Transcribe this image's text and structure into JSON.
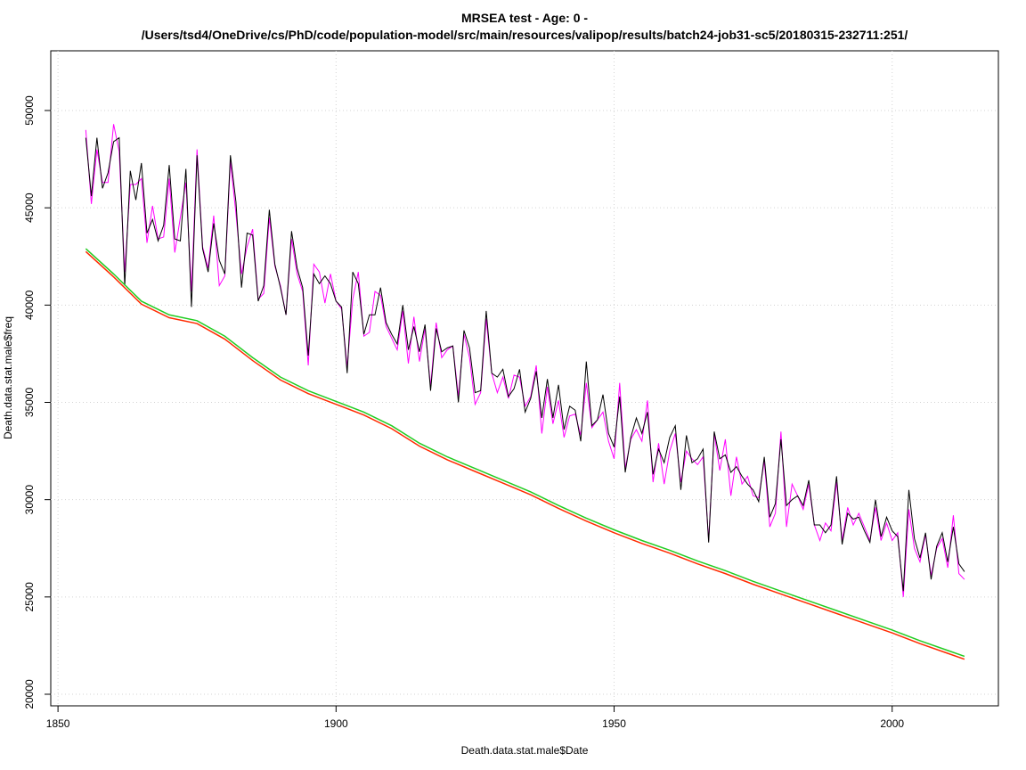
{
  "chart_data": {
    "type": "line",
    "title": "MRSEA test  - Age: 0 -",
    "subtitle": "/Users/tsd4/OneDrive/cs/PhD/code/population-model/src/main/resources/valipop/results/batch24-job31-sc5/20180315-232711:251/",
    "x_label": "Death.data.stat.male$Date",
    "y_label": "Death.data.stat.male$freq",
    "xlim": [
      1848.7,
      2019.1
    ],
    "ylim": [
      19404,
      53069
    ],
    "xticks": [
      1850,
      1900,
      1950,
      2000
    ],
    "yticks": [
      20000,
      25000,
      30000,
      35000,
      40000,
      45000,
      50000
    ],
    "grid": true,
    "x": [
      1855,
      1856,
      1857,
      1858,
      1859,
      1860,
      1861,
      1862,
      1863,
      1864,
      1865,
      1866,
      1867,
      1868,
      1869,
      1870,
      1871,
      1872,
      1873,
      1874,
      1875,
      1876,
      1877,
      1878,
      1879,
      1880,
      1881,
      1882,
      1883,
      1884,
      1885,
      1886,
      1887,
      1888,
      1889,
      1890,
      1891,
      1892,
      1893,
      1894,
      1895,
      1896,
      1897,
      1898,
      1899,
      1900,
      1901,
      1902,
      1903,
      1904,
      1905,
      1906,
      1907,
      1908,
      1909,
      1910,
      1911,
      1912,
      1913,
      1914,
      1915,
      1916,
      1917,
      1918,
      1919,
      1920,
      1921,
      1922,
      1923,
      1924,
      1925,
      1926,
      1927,
      1928,
      1929,
      1930,
      1931,
      1932,
      1933,
      1934,
      1935,
      1936,
      1937,
      1938,
      1939,
      1940,
      1941,
      1942,
      1943,
      1944,
      1945,
      1946,
      1947,
      1948,
      1949,
      1950,
      1951,
      1952,
      1953,
      1954,
      1955,
      1956,
      1957,
      1958,
      1959,
      1960,
      1961,
      1962,
      1963,
      1964,
      1965,
      1966,
      1967,
      1968,
      1969,
      1970,
      1971,
      1972,
      1973,
      1974,
      1975,
      1976,
      1977,
      1978,
      1979,
      1980,
      1981,
      1982,
      1983,
      1984,
      1985,
      1986,
      1987,
      1988,
      1989,
      1990,
      1991,
      1992,
      1993,
      1994,
      1995,
      1996,
      1997,
      1998,
      1999,
      2000,
      2001,
      2002,
      2003,
      2004,
      2005,
      2006,
      2007,
      2008,
      2009,
      2010,
      2011,
      2012,
      2013
    ],
    "series": [
      {
        "color": "#ff00ff",
        "values": [
          49000,
          45200,
          48000,
          46300,
          46300,
          49300,
          47900,
          41700,
          46200,
          46200,
          46500,
          43200,
          45100,
          43400,
          43500,
          46500,
          42700,
          44500,
          46300,
          40700,
          48000,
          43000,
          41900,
          44600,
          41000,
          41500,
          47400,
          44700,
          41600,
          43000,
          43900,
          40300,
          40600,
          44500,
          42000,
          41000,
          39500,
          43400,
          41600,
          40700,
          36900,
          42100,
          41700,
          40100,
          41600,
          40200,
          39800,
          36800,
          40300,
          41700,
          38400,
          38600,
          40700,
          40500,
          38900,
          38300,
          37700,
          39700,
          37000,
          39400,
          37100,
          38800,
          35800,
          39100,
          37300,
          37700,
          37900,
          35300,
          38500,
          37300,
          34900,
          35500,
          39300,
          36500,
          35500,
          36300,
          35200,
          36400,
          36300,
          34800,
          35300,
          36900,
          33400,
          35800,
          33900,
          35100,
          33200,
          34300,
          34400,
          33300,
          36000,
          33700,
          34100,
          34500,
          33000,
          32100,
          36000,
          31600,
          33100,
          33600,
          33000,
          35100,
          30900,
          32900,
          30800,
          32500,
          33400,
          30900,
          32500,
          32100,
          31800,
          32200,
          27900,
          33400,
          31500,
          33100,
          30200,
          32200,
          30800,
          31200,
          30200,
          30100,
          32000,
          28600,
          29300,
          33500,
          28600,
          30800,
          30200,
          29500,
          30800,
          28700,
          27900,
          28800,
          28400,
          30900,
          27900,
          29600,
          28700,
          29300,
          28600,
          27900,
          29600,
          27900,
          28800,
          27900,
          28300,
          25000,
          29500,
          27500,
          26800,
          28200,
          26100,
          27500,
          28000,
          26500,
          29200,
          26200,
          25900
        ]
      },
      {
        "color": "#000000",
        "values": [
          48600,
          45600,
          48600,
          46000,
          46800,
          48400,
          48600,
          41000,
          46900,
          45400,
          47300,
          43700,
          44400,
          43300,
          44100,
          47200,
          43400,
          43300,
          47000,
          39900,
          47700,
          42900,
          41700,
          44200,
          42300,
          41600,
          47700,
          45300,
          40900,
          43700,
          43600,
          40200,
          41000,
          44900,
          42100,
          40900,
          39500,
          43800,
          41900,
          40900,
          37400,
          41600,
          41100,
          41500,
          41100,
          40200,
          39900,
          36500,
          41700,
          41100,
          38500,
          39500,
          39500,
          40900,
          39100,
          38500,
          38000,
          40000,
          37700,
          38900,
          37600,
          39000,
          35600,
          38800,
          37600,
          37800,
          37900,
          35000,
          38700,
          37800,
          35500,
          35600,
          39700,
          36500,
          36300,
          36700,
          35300,
          35700,
          36700,
          34500,
          35200,
          36600,
          34200,
          36200,
          34200,
          35900,
          33600,
          34800,
          34600,
          33000,
          37100,
          33800,
          34100,
          35400,
          33400,
          32700,
          35300,
          31400,
          33200,
          34200,
          33400,
          34500,
          31300,
          32600,
          31900,
          33200,
          33800,
          30500,
          33300,
          31900,
          32100,
          32600,
          27800,
          33500,
          32100,
          32300,
          31400,
          31700,
          31200,
          30800,
          30500,
          29900,
          32200,
          29100,
          29800,
          33100,
          29700,
          30000,
          30200,
          29700,
          31000,
          28700,
          28700,
          28300,
          28700,
          31200,
          27700,
          29300,
          29000,
          29100,
          28400,
          27800,
          30000,
          28100,
          29100,
          28400,
          28100,
          25300,
          30500,
          28000,
          27000,
          28300,
          25900,
          27600,
          28300,
          26800,
          28600,
          26700,
          26300
        ]
      },
      {
        "color": "#22cc22",
        "x": [
          1855,
          1860,
          1865,
          1870,
          1875,
          1880,
          1885,
          1890,
          1895,
          1900,
          1905,
          1910,
          1915,
          1920,
          1925,
          1930,
          1935,
          1940,
          1945,
          1950,
          1955,
          1960,
          1965,
          1970,
          1975,
          1980,
          1985,
          1990,
          1995,
          2000,
          2005,
          2010,
          2013
        ],
        "values": [
          42900,
          41600,
          40200,
          39500,
          39200,
          38400,
          37300,
          36300,
          35600,
          35050,
          34500,
          33800,
          32900,
          32200,
          31600,
          31000,
          30400,
          29700,
          29050,
          28450,
          27900,
          27400,
          26850,
          26350,
          25800,
          25300,
          24800,
          24300,
          23800,
          23300,
          22750,
          22250,
          21950
        ]
      },
      {
        "color": "#ff2a00",
        "x": [
          1855,
          1860,
          1865,
          1870,
          1875,
          1880,
          1885,
          1890,
          1895,
          1900,
          1905,
          1910,
          1915,
          1920,
          1925,
          1930,
          1935,
          1940,
          1945,
          1950,
          1955,
          1960,
          1965,
          1970,
          1975,
          1980,
          1985,
          1990,
          1995,
          2000,
          2005,
          2010,
          2013
        ],
        "values": [
          42750,
          41450,
          40050,
          39350,
          39050,
          38250,
          37150,
          36150,
          35450,
          34900,
          34350,
          33650,
          32750,
          32050,
          31450,
          30850,
          30250,
          29550,
          28900,
          28300,
          27750,
          27250,
          26700,
          26200,
          25650,
          25150,
          24650,
          24150,
          23650,
          23150,
          22600,
          22100,
          21800
        ]
      }
    ]
  }
}
